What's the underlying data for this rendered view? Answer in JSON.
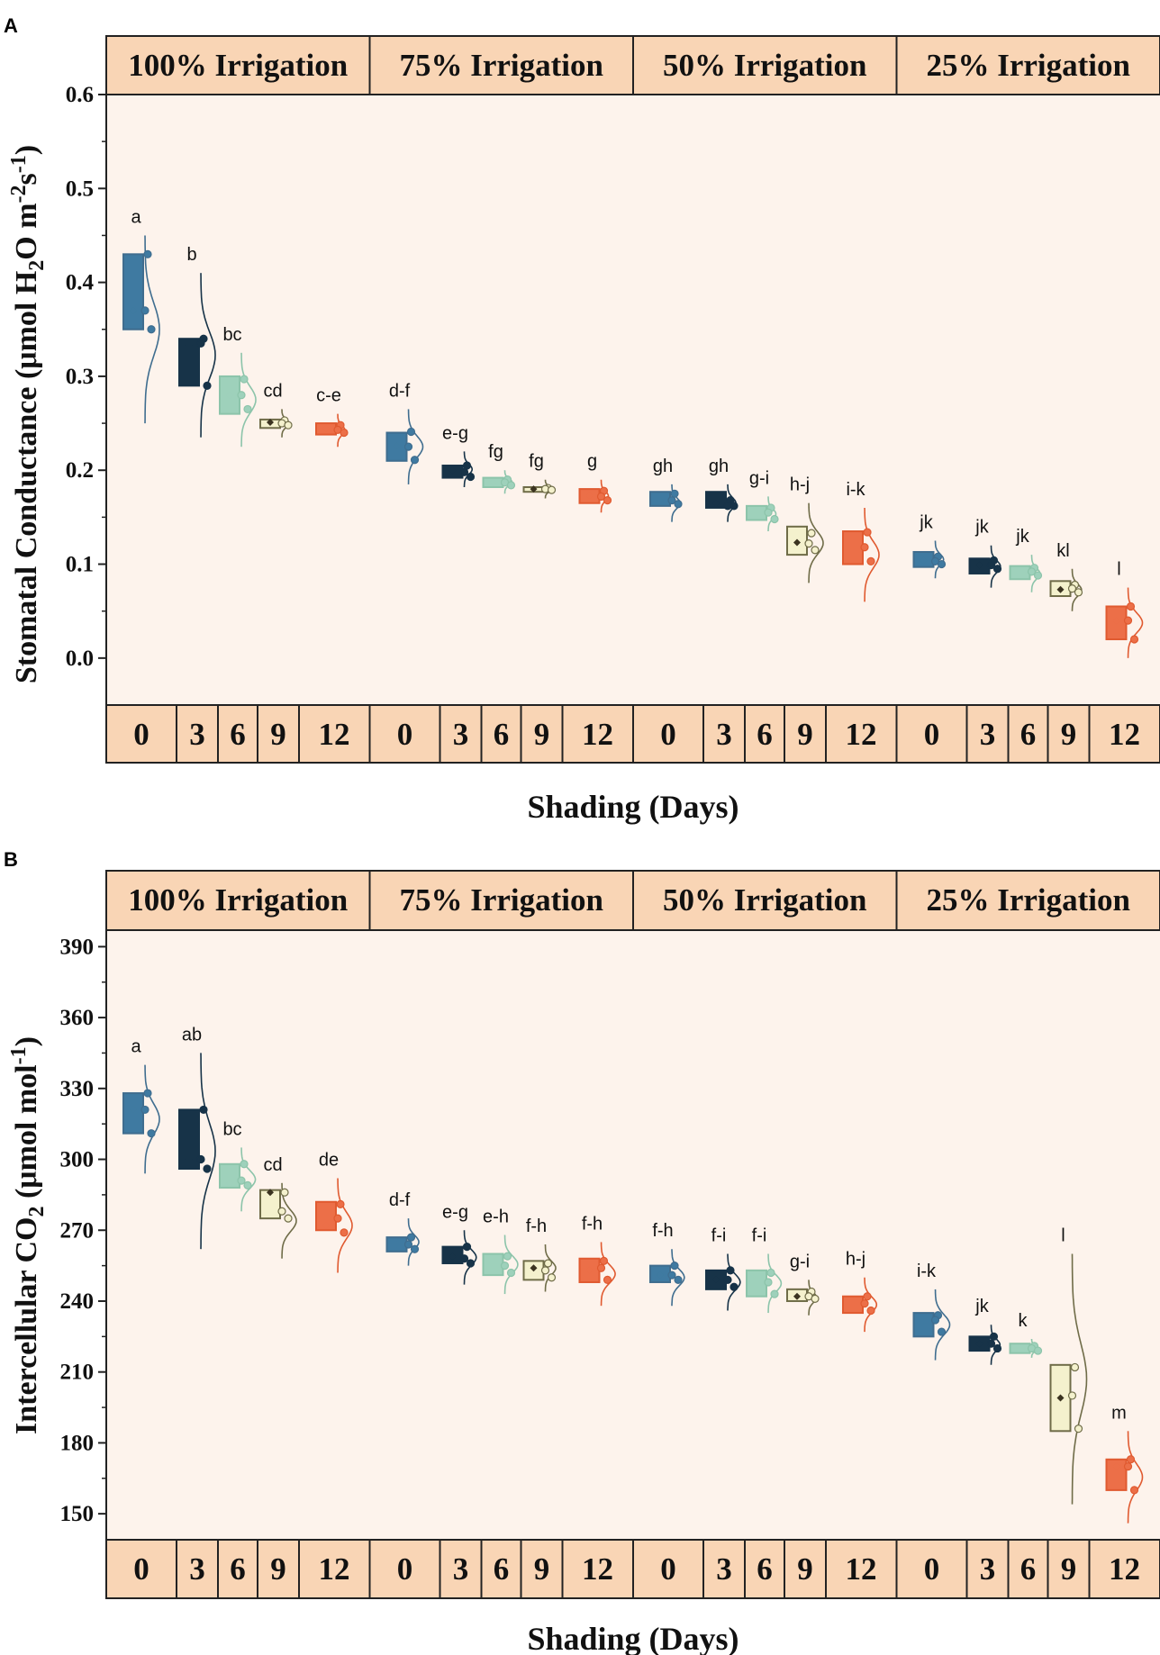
{
  "colors": {
    "plot_bg": "#fdf3ec",
    "header_bg": "#f9d5b5",
    "days": [
      "#3f7aa1",
      "#173348",
      "#9ed1bb",
      "#f4f1cd",
      "#ec6f48"
    ],
    "diamonds": [
      "#3f7aa1",
      "#173348",
      "#9ed1bb",
      "#3b3320",
      "#ec6f48"
    ],
    "curves": [
      "#3f6d8f",
      "#173348",
      "#8cc4aa",
      "#6f6c48",
      "#e05a30"
    ]
  },
  "chart_data": [
    {
      "panel": "A",
      "type": "box-violin",
      "groups": [
        "100% Irrigation",
        "75% Irrigation",
        "50% Irrigation",
        "25% Irrigation"
      ],
      "days": [
        "0",
        "3",
        "6",
        "9",
        "12"
      ],
      "xlabel": "Shading (Days)",
      "ylabel_parts": [
        "Stomatal Conductance (μmol H",
        "2",
        "O m",
        "-2",
        "s",
        "-1",
        ")"
      ],
      "ylim": [
        -0.05,
        0.6
      ],
      "yticks": [
        0.0,
        0.1,
        0.2,
        0.3,
        0.4,
        0.5,
        0.6
      ],
      "ytick_labels": [
        "0.0",
        "0.1",
        "0.2",
        "0.3",
        "0.4",
        "0.5",
        "0.6"
      ],
      "series": [
        {
          "group": "100% Irrigation",
          "day": "0",
          "box": [
            0.35,
            0.43
          ],
          "mean": 0.37,
          "points": [
            0.43,
            0.37,
            0.35
          ],
          "curve": [
            0.25,
            0.45
          ],
          "letter": "a"
        },
        {
          "group": "100% Irrigation",
          "day": "3",
          "box": [
            0.29,
            0.34
          ],
          "mean": 0.333,
          "points": [
            0.34,
            0.335,
            0.29
          ],
          "curve": [
            0.235,
            0.41
          ],
          "letter": "b"
        },
        {
          "group": "100% Irrigation",
          "day": "6",
          "box": [
            0.26,
            0.3
          ],
          "mean": 0.28,
          "points": [
            0.297,
            0.28,
            0.265
          ],
          "curve": [
            0.225,
            0.325
          ],
          "letter": "bc"
        },
        {
          "group": "100% Irrigation",
          "day": "9",
          "box": [
            0.245,
            0.254
          ],
          "mean": 0.251,
          "points": [
            0.253,
            0.25,
            0.248
          ],
          "curve": [
            0.235,
            0.265
          ],
          "letter": "cd"
        },
        {
          "group": "100% Irrigation",
          "day": "12",
          "box": [
            0.238,
            0.25
          ],
          "mean": 0.244,
          "points": [
            0.248,
            0.243,
            0.24
          ],
          "curve": [
            0.225,
            0.26
          ],
          "letter": "c-e"
        },
        {
          "group": "75% Irrigation",
          "day": "0",
          "box": [
            0.21,
            0.24
          ],
          "mean": 0.226,
          "points": [
            0.241,
            0.225,
            0.211
          ],
          "curve": [
            0.185,
            0.265
          ],
          "letter": "d-f"
        },
        {
          "group": "75% Irrigation",
          "day": "3",
          "box": [
            0.192,
            0.205
          ],
          "mean": 0.2,
          "points": [
            0.205,
            0.198,
            0.193
          ],
          "curve": [
            0.182,
            0.22
          ],
          "letter": "e-g"
        },
        {
          "group": "75% Irrigation",
          "day": "6",
          "box": [
            0.182,
            0.192
          ],
          "mean": 0.187,
          "points": [
            0.19,
            0.187,
            0.184
          ],
          "curve": [
            0.175,
            0.2
          ],
          "letter": "fg"
        },
        {
          "group": "75% Irrigation",
          "day": "9",
          "box": [
            0.177,
            0.182
          ],
          "mean": 0.18,
          "points": [
            0.181,
            0.18,
            0.179
          ],
          "curve": [
            0.17,
            0.19
          ],
          "letter": "fg"
        },
        {
          "group": "75% Irrigation",
          "day": "12",
          "box": [
            0.165,
            0.18
          ],
          "mean": 0.173,
          "points": [
            0.178,
            0.172,
            0.168
          ],
          "curve": [
            0.155,
            0.19
          ],
          "letter": "g"
        },
        {
          "group": "50% Irrigation",
          "day": "0",
          "box": [
            0.162,
            0.177
          ],
          "mean": 0.168,
          "points": [
            0.175,
            0.168,
            0.164
          ],
          "curve": [
            0.145,
            0.185
          ],
          "letter": "gh"
        },
        {
          "group": "50% Irrigation",
          "day": "3",
          "box": [
            0.16,
            0.177
          ],
          "mean": 0.165,
          "points": [
            0.168,
            0.162,
            0.162
          ],
          "curve": [
            0.145,
            0.185
          ],
          "letter": "gh"
        },
        {
          "group": "50% Irrigation",
          "day": "6",
          "box": [
            0.147,
            0.162
          ],
          "mean": 0.155,
          "points": [
            0.16,
            0.155,
            0.148
          ],
          "curve": [
            0.135,
            0.172
          ],
          "letter": "g-i"
        },
        {
          "group": "50% Irrigation",
          "day": "9",
          "box": [
            0.11,
            0.14
          ],
          "mean": 0.123,
          "points": [
            0.133,
            0.122,
            0.115
          ],
          "curve": [
            0.08,
            0.165
          ],
          "letter": "h-j"
        },
        {
          "group": "50% Irrigation",
          "day": "12",
          "box": [
            0.1,
            0.135
          ],
          "mean": 0.118,
          "points": [
            0.134,
            0.118,
            0.103
          ],
          "curve": [
            0.06,
            0.16
          ],
          "letter": "i-k"
        },
        {
          "group": "25% Irrigation",
          "day": "0",
          "box": [
            0.097,
            0.113
          ],
          "mean": 0.104,
          "points": [
            0.108,
            0.103,
            0.1
          ],
          "curve": [
            0.085,
            0.125
          ],
          "letter": "jk"
        },
        {
          "group": "25% Irrigation",
          "day": "3",
          "box": [
            0.09,
            0.106
          ],
          "mean": 0.099,
          "points": [
            0.104,
            0.099,
            0.095
          ],
          "curve": [
            0.075,
            0.12
          ],
          "letter": "jk"
        },
        {
          "group": "25% Irrigation",
          "day": "6",
          "box": [
            0.084,
            0.098
          ],
          "mean": 0.091,
          "points": [
            0.096,
            0.092,
            0.088
          ],
          "curve": [
            0.07,
            0.11
          ],
          "letter": "jk"
        },
        {
          "group": "25% Irrigation",
          "day": "9",
          "box": [
            0.066,
            0.082
          ],
          "mean": 0.073,
          "points": [
            0.078,
            0.074,
            0.07
          ],
          "curve": [
            0.05,
            0.095
          ],
          "letter": "kl"
        },
        {
          "group": "25% Irrigation",
          "day": "12",
          "box": [
            0.02,
            0.055
          ],
          "mean": 0.04,
          "points": [
            0.055,
            0.04,
            0.02
          ],
          "curve": [
            0.0,
            0.075
          ],
          "letter": "l"
        }
      ]
    },
    {
      "panel": "B",
      "type": "box-violin",
      "groups": [
        "100% Irrigation",
        "75% Irrigation",
        "50% Irrigation",
        "25% Irrigation"
      ],
      "days": [
        "0",
        "3",
        "6",
        "9",
        "12"
      ],
      "xlabel": "Shading (Days)",
      "ylabel_parts": [
        "Intercellular CO",
        "2",
        " (μmol mol",
        "-1",
        ")"
      ],
      "ylim": [
        139,
        397
      ],
      "yticks": [
        150,
        180,
        210,
        240,
        270,
        300,
        330,
        360,
        390
      ],
      "ytick_labels": [
        "150",
        "180",
        "210",
        "240",
        "270",
        "300",
        "330",
        "360",
        "390"
      ],
      "series": [
        {
          "group": "100% Irrigation",
          "day": "0",
          "box": [
            311,
            328
          ],
          "mean": 321,
          "points": [
            328,
            321,
            311
          ],
          "curve": [
            294,
            340
          ],
          "letter": "a"
        },
        {
          "group": "100% Irrigation",
          "day": "3",
          "box": [
            296,
            321
          ],
          "mean": 300,
          "points": [
            321,
            300,
            296
          ],
          "curve": [
            262,
            345
          ],
          "letter": "ab"
        },
        {
          "group": "100% Irrigation",
          "day": "6",
          "box": [
            288,
            298
          ],
          "mean": 290,
          "points": [
            298,
            291,
            289
          ],
          "curve": [
            278,
            305
          ],
          "letter": "bc"
        },
        {
          "group": "100% Irrigation",
          "day": "9",
          "box": [
            275,
            287
          ],
          "mean": 286,
          "points": [
            286,
            278,
            275
          ],
          "curve": [
            258,
            290
          ],
          "letter": "cd"
        },
        {
          "group": "100% Irrigation",
          "day": "12",
          "box": [
            270,
            282
          ],
          "mean": 272,
          "points": [
            281,
            275,
            269
          ],
          "curve": [
            252,
            292
          ],
          "letter": "de"
        },
        {
          "group": "75% Irrigation",
          "day": "0",
          "box": [
            261,
            267
          ],
          "mean": 264,
          "points": [
            267,
            264,
            262
          ],
          "curve": [
            255,
            275
          ],
          "letter": "d-f"
        },
        {
          "group": "75% Irrigation",
          "day": "3",
          "box": [
            256,
            263
          ],
          "mean": 259,
          "points": [
            263,
            258,
            256
          ],
          "curve": [
            247,
            270
          ],
          "letter": "e-g"
        },
        {
          "group": "75% Irrigation",
          "day": "6",
          "box": [
            251,
            260
          ],
          "mean": 255,
          "points": [
            259,
            255,
            252
          ],
          "curve": [
            243,
            268
          ],
          "letter": "e-h"
        },
        {
          "group": "75% Irrigation",
          "day": "9",
          "box": [
            249,
            257
          ],
          "mean": 254,
          "points": [
            256,
            253,
            250
          ],
          "curve": [
            244,
            264
          ],
          "letter": "f-h"
        },
        {
          "group": "75% Irrigation",
          "day": "12",
          "box": [
            248,
            258
          ],
          "mean": 253,
          "points": [
            257,
            254,
            249
          ],
          "curve": [
            238,
            265
          ],
          "letter": "f-h"
        },
        {
          "group": "50% Irrigation",
          "day": "0",
          "box": [
            248,
            255
          ],
          "mean": 251,
          "points": [
            255,
            251,
            249
          ],
          "curve": [
            238,
            262
          ],
          "letter": "f-h"
        },
        {
          "group": "50% Irrigation",
          "day": "3",
          "box": [
            245,
            253
          ],
          "mean": 249,
          "points": [
            253,
            249,
            246
          ],
          "curve": [
            236,
            260
          ],
          "letter": "f-i"
        },
        {
          "group": "50% Irrigation",
          "day": "6",
          "box": [
            242,
            253
          ],
          "mean": 247,
          "points": [
            252,
            248,
            243
          ],
          "curve": [
            235,
            260
          ],
          "letter": "f-i"
        },
        {
          "group": "50% Irrigation",
          "day": "9",
          "box": [
            240,
            245
          ],
          "mean": 242,
          "points": [
            244,
            242,
            241
          ],
          "curve": [
            234,
            249
          ],
          "letter": "g-i"
        },
        {
          "group": "50% Irrigation",
          "day": "12",
          "box": [
            235,
            242
          ],
          "mean": 238,
          "points": [
            242,
            239,
            236
          ],
          "curve": [
            227,
            250
          ],
          "letter": "h-j"
        },
        {
          "group": "25% Irrigation",
          "day": "0",
          "box": [
            225,
            235
          ],
          "mean": 232,
          "points": [
            234,
            232,
            227
          ],
          "curve": [
            215,
            245
          ],
          "letter": "i-k"
        },
        {
          "group": "25% Irrigation",
          "day": "3",
          "box": [
            219,
            225
          ],
          "mean": 222,
          "points": [
            225,
            222,
            220
          ],
          "curve": [
            213,
            230
          ],
          "letter": "jk"
        },
        {
          "group": "25% Irrigation",
          "day": "6",
          "box": [
            218,
            222
          ],
          "mean": 220,
          "points": [
            221,
            220,
            219
          ],
          "curve": [
            216,
            224
          ],
          "letter": "k"
        },
        {
          "group": "25% Irrigation",
          "day": "9",
          "box": [
            185,
            213
          ],
          "mean": 199,
          "points": [
            212,
            200,
            186
          ],
          "curve": [
            154,
            260
          ],
          "letter": "l"
        },
        {
          "group": "25% Irrigation",
          "day": "12",
          "box": [
            160,
            173
          ],
          "mean": 170,
          "points": [
            173,
            170,
            160
          ],
          "curve": [
            146,
            185
          ],
          "letter": "m"
        }
      ]
    }
  ]
}
